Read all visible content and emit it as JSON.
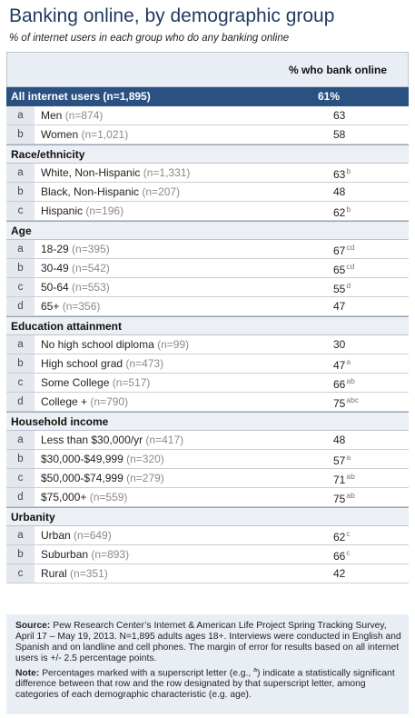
{
  "header": {
    "title": "Banking online, by demographic group",
    "subtitle": "% of internet users in each group who do any banking online"
  },
  "chart_data": {
    "type": "table",
    "column_header": "% who bank online",
    "all_users": {
      "label": "All internet users (n=1,895)",
      "value": "61%"
    },
    "sections": [
      {
        "name": "",
        "rows": [
          {
            "letter": "a",
            "label": "Men",
            "n": "(n=874)",
            "value": 63,
            "sup": ""
          },
          {
            "letter": "b",
            "label": "Women",
            "n": "(n=1,021)",
            "value": 58,
            "sup": ""
          }
        ]
      },
      {
        "name": "Race/ethnicity",
        "rows": [
          {
            "letter": "a",
            "label": "White, Non-Hispanic",
            "n": "(n=1,331)",
            "value": 63,
            "sup": "b"
          },
          {
            "letter": "b",
            "label": "Black, Non-Hispanic",
            "n": "(n=207)",
            "value": 48,
            "sup": ""
          },
          {
            "letter": "c",
            "label": "Hispanic",
            "n": "(n=196)",
            "value": 62,
            "sup": "b"
          }
        ]
      },
      {
        "name": "Age",
        "rows": [
          {
            "letter": "a",
            "label": "18-29",
            "n": "(n=395)",
            "value": 67,
            "sup": "cd"
          },
          {
            "letter": "b",
            "label": "30-49",
            "n": "(n=542)",
            "value": 65,
            "sup": "cd"
          },
          {
            "letter": "c",
            "label": "50-64",
            "n": "(n=553)",
            "value": 55,
            "sup": "d"
          },
          {
            "letter": "d",
            "label": "65+",
            "n": "(n=356)",
            "value": 47,
            "sup": ""
          }
        ]
      },
      {
        "name": "Education attainment",
        "rows": [
          {
            "letter": "a",
            "label": "No high school diploma",
            "n": "(n=99)",
            "value": 30,
            "sup": ""
          },
          {
            "letter": "b",
            "label": "High school grad",
            "n": "(n=473)",
            "value": 47,
            "sup": "a"
          },
          {
            "letter": "c",
            "label": "Some College",
            "n": "(n=517)",
            "value": 66,
            "sup": "ab"
          },
          {
            "letter": "d",
            "label": "College +",
            "n": "(n=790)",
            "value": 75,
            "sup": "abc"
          }
        ]
      },
      {
        "name": "Household income",
        "rows": [
          {
            "letter": "a",
            "label": "Less than $30,000/yr",
            "n": "(n=417)",
            "value": 48,
            "sup": ""
          },
          {
            "letter": "b",
            "label": "$30,000-$49,999",
            "n": "(n=320)",
            "value": 57,
            "sup": "a"
          },
          {
            "letter": "c",
            "label": "$50,000-$74,999",
            "n": "(n=279)",
            "value": 71,
            "sup": "ab"
          },
          {
            "letter": "d",
            "label": "$75,000+",
            "n": "(n=559)",
            "value": 75,
            "sup": "ab"
          }
        ]
      },
      {
        "name": "Urbanity",
        "rows": [
          {
            "letter": "a",
            "label": "Urban",
            "n": "(n=649)",
            "value": 62,
            "sup": "c"
          },
          {
            "letter": "b",
            "label": "Suburban",
            "n": "(n=893)",
            "value": 66,
            "sup": "c"
          },
          {
            "letter": "c",
            "label": "Rural",
            "n": "(n=351)",
            "value": 42,
            "sup": ""
          }
        ]
      }
    ]
  },
  "footer": {
    "source_label": "Source:",
    "source_text": "Pew Research Center’s Internet & American Life Project Spring Tracking Survey, April 17 – May 19, 2013. N=1,895 adults ages 18+. Interviews were conducted in English and Spanish and on landline and cell phones.  The margin of error for results based on all internet users is +/- 2.5 percentage points.",
    "note_label": "Note:",
    "note_text_before": "Percentages marked with a superscript letter (e.g., ",
    "note_sup": "a",
    "note_text_after": ") indicate a statistically significant difference between that row and the row designated by that superscript letter, among categories of each demographic characteristic (e.g. age)."
  },
  "colors": {
    "title": "#1f3a5f",
    "all_row_bg": "#2b5182",
    "header_bg": "#e9eef4",
    "letter_bg": "#e4e8ee"
  }
}
